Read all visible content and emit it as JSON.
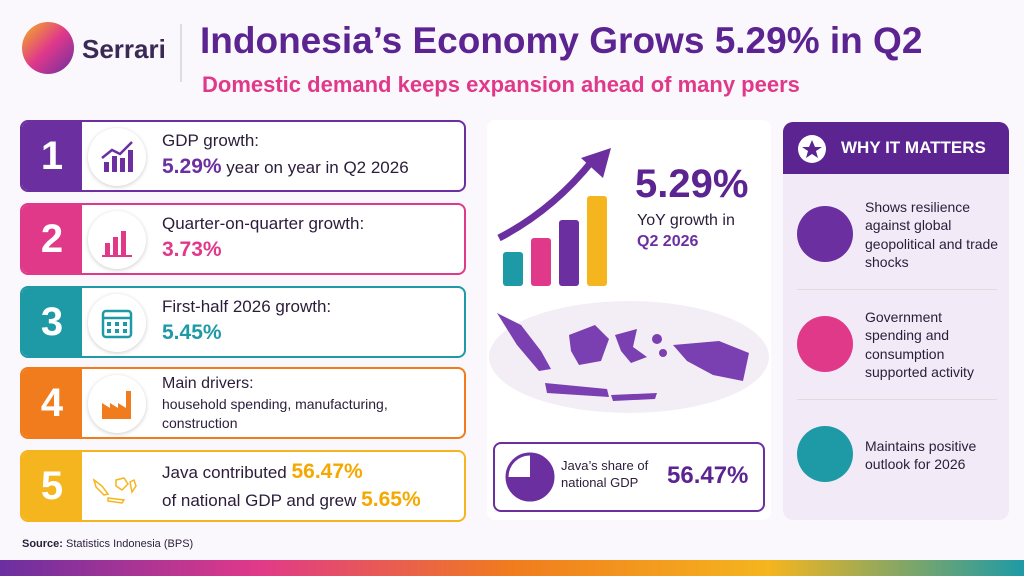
{
  "header": {
    "logo": "Serrari",
    "title": "Indonesia’s Economy Grows 5.29% in Q2",
    "subtitle": "Domestic demand keeps expansion ahead of many peers"
  },
  "items": [
    {
      "number": "1",
      "label": "GDP growth:",
      "value": "5.29%",
      "detail": "year on year in Q2 2026"
    },
    {
      "number": "2",
      "label": "Quarter-on-quarter growth:",
      "value": "3.73%"
    },
    {
      "number": "3",
      "label": "First-half 2026 growth:",
      "value": "5.45%"
    },
    {
      "number": "4",
      "label": "Main drivers:",
      "detail": "household spending, manufacturing, construction"
    },
    {
      "number": "5",
      "parts": [
        "Java contributed",
        "56.47%",
        "of national GDP and grew",
        "5.65%"
      ]
    }
  ],
  "highlight": {
    "value": "5.29%",
    "caption": "YoY growth in",
    "period": "Q2 2026"
  },
  "java_share": {
    "label": "Java’s share of national GDP",
    "value": "56.47%"
  },
  "why_it_matters": {
    "title": "WHY IT MATTERS",
    "points": [
      "Shows resilience against global geopolitical and trade shocks",
      "Government spending and consumption supported activity",
      "Maintains positive outlook for 2026"
    ]
  },
  "source": {
    "label": "Source:",
    "text": "Statistics Indonesia (BPS)"
  }
}
